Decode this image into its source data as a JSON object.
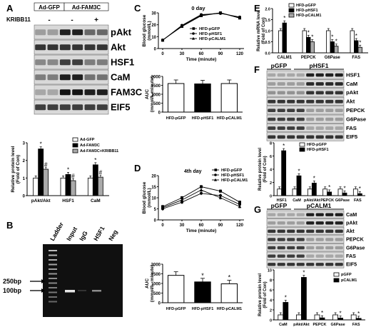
{
  "panels": {
    "A": {
      "letter": "A",
      "groups": [
        "Ad-GFP",
        "Ad-FAM3C"
      ],
      "kribb_label": "KRIBB11",
      "kribb_signs": [
        "-",
        "-",
        "+"
      ],
      "blot_labels": [
        "pAkt",
        "Akt",
        "HSF1",
        "CaM",
        "FAM3C",
        "EIF5"
      ],
      "blot_intensity": [
        [
          0.35,
          0.95,
          0.6
        ],
        [
          0.85,
          0.85,
          0.85
        ],
        [
          0.45,
          0.8,
          0.5
        ],
        [
          0.5,
          0.95,
          0.55
        ],
        [
          0.3,
          1.0,
          0.95
        ],
        [
          0.8,
          0.8,
          0.8
        ]
      ]
    },
    "B": {
      "letter": "B",
      "lanes": [
        "Ladder",
        "Input",
        "IgG",
        "HSF1",
        "Neg"
      ],
      "markers": [
        "250bp",
        "100bp"
      ]
    },
    "C": {
      "letter": "C",
      "day_label": "0 day"
    },
    "D": {
      "letter": "D",
      "day_label": "4th day"
    },
    "E": {
      "letter": "E"
    },
    "F": {
      "letter": "F",
      "groups": [
        "pGFP",
        "pHSF1"
      ],
      "blot_labels": [
        "HSF1",
        "CaM",
        "pAkt",
        "Akt",
        "PEPCK",
        "G6Pase",
        "FAS",
        "EIF5"
      ],
      "blot_intensity": [
        [
          0.3,
          0.95
        ],
        [
          0.35,
          0.9
        ],
        [
          0.4,
          0.85
        ],
        [
          0.85,
          0.85
        ],
        [
          0.8,
          0.35
        ],
        [
          0.8,
          0.35
        ],
        [
          0.8,
          0.3
        ],
        [
          0.85,
          0.85
        ]
      ]
    },
    "G": {
      "letter": "G",
      "groups": [
        "pGFP",
        "pCALM1"
      ],
      "blot_labels": [
        "CaM",
        "pAkt",
        "Akt",
        "PEPCK",
        "G6Pase",
        "FAS",
        "EIF5"
      ],
      "blot_intensity": [
        [
          0.3,
          0.95
        ],
        [
          0.35,
          0.95
        ],
        [
          0.85,
          0.85
        ],
        [
          0.8,
          0.35
        ],
        [
          0.8,
          0.35
        ],
        [
          0.8,
          0.3
        ],
        [
          0.85,
          0.85
        ]
      ]
    }
  },
  "chart_data": [
    {
      "id": "A-bar",
      "type": "bar",
      "categories": [
        "pAkt/Akt",
        "HSF1",
        "CaM"
      ],
      "series": [
        {
          "name": "Ad-GFP",
          "values": [
            1.0,
            1.0,
            1.0
          ],
          "color": "#ffffff"
        },
        {
          "name": "Ad-FAM3C",
          "values": [
            2.65,
            1.2,
            1.75
          ],
          "color": "#000000"
        },
        {
          "name": "Ad-FAM3C+KRIBB11",
          "values": [
            1.5,
            0.85,
            1.05
          ],
          "color": "#aaaaaa"
        }
      ],
      "ylabel": "Relative protein level",
      "ylim": [
        0,
        3
      ],
      "yticks": [
        "0",
        "1",
        "2",
        "3"
      ],
      "annotations": [
        "*",
        "#",
        "*",
        "#",
        "*",
        "#"
      ]
    },
    {
      "id": "C-line",
      "type": "line",
      "x": [
        0,
        30,
        60,
        90,
        120
      ],
      "series": [
        {
          "name": "HFD-pGFP",
          "values": [
            7.0,
            19.0,
            28.0,
            30.0,
            26.0
          ]
        },
        {
          "name": "HFD-pHSF1",
          "values": [
            7.0,
            19.5,
            28.5,
            29.5,
            26.5
          ]
        },
        {
          "name": "HFD-pCALM1",
          "values": [
            7.2,
            18.5,
            27.5,
            30.0,
            25.5
          ]
        }
      ],
      "xlabel": "Time (minute)",
      "ylabel": "Blood glucose (mmol/L)",
      "ylim": [
        0,
        30
      ],
      "yticks": [
        "0",
        "10",
        "20",
        "30"
      ],
      "xticks": [
        "0",
        "30",
        "60",
        "90",
        "120"
      ]
    },
    {
      "id": "C-bar",
      "type": "bar",
      "categories": [
        "HFD-pGFP",
        "HFD-pHSF1",
        "HFD-pCALM1"
      ],
      "values": [
        1600,
        1580,
        1600
      ],
      "colors": [
        "#ffffff",
        "#000000",
        "#ffffff"
      ],
      "ylabel": "AUC (mmol/L.minute)",
      "ylim": [
        0,
        2000
      ],
      "yticks": [
        "0",
        "500",
        "1000",
        "1500",
        "2000"
      ]
    },
    {
      "id": "D-line",
      "type": "line",
      "x": [
        0,
        30,
        60,
        90,
        120
      ],
      "series": [
        {
          "name": "HFD-pGFP",
          "values": [
            6.0,
            10.0,
            15.0,
            13.0,
            8.0
          ]
        },
        {
          "name": "HFD-pHSF1",
          "values": [
            5.0,
            8.0,
            12.0,
            11.0,
            7.0
          ]
        },
        {
          "name": "HFD-pCALM1",
          "values": [
            5.5,
            9.0,
            13.5,
            10.0,
            6.0
          ]
        }
      ],
      "xlabel": "Time (minute)",
      "ylabel": "Blood glucose (mmol/L)",
      "ylim": [
        0,
        20
      ],
      "yticks": [
        "0",
        "5",
        "10",
        "15",
        "20"
      ],
      "xticks": [
        "0",
        "30",
        "60",
        "90",
        "120"
      ]
    },
    {
      "id": "D-bar",
      "type": "bar",
      "categories": [
        "HFD-pGFP",
        "HFD-pHSF1",
        "HFD-pCALM1"
      ],
      "values": [
        1420,
        1080,
        980
      ],
      "colors": [
        "#ffffff",
        "#000000",
        "#ffffff"
      ],
      "ylabel": "AUC (mmol/L_minute)",
      "ylim": [
        0,
        2000
      ],
      "yticks": [
        "0",
        "500",
        "1000",
        "1500",
        "2000"
      ],
      "annotations": [
        "",
        "*",
        "*"
      ]
    },
    {
      "id": "E-bar",
      "type": "bar",
      "categories": [
        "CALM1",
        "PEPCK",
        "G6Pase",
        "FAS"
      ],
      "series": [
        {
          "name": "HFD-pGFP",
          "values": [
            1.0,
            1.0,
            1.0,
            1.0
          ],
          "color": "#ffffff"
        },
        {
          "name": "HFD-pHSF1",
          "values": [
            1.35,
            0.7,
            0.5,
            0.55
          ],
          "color": "#000000"
        },
        {
          "name": "HFD-pCALM1",
          "values": [
            0,
            0.5,
            0.3,
            0.25
          ],
          "color": "#aaaaaa"
        }
      ],
      "ylabel": "Relative mRNA level (Fold of Con)",
      "ylim": [
        0,
        2.0
      ],
      "yticks": [
        "0.0",
        "0.5",
        "1.0",
        "1.5",
        "2.0"
      ],
      "annotations": [
        "*",
        "*",
        "*",
        "*",
        "*",
        "*",
        "*"
      ]
    },
    {
      "id": "F-bar",
      "type": "bar",
      "categories": [
        "HSF1",
        "CaM",
        "pAkt/Akt",
        "PEPCK",
        "G6Pase",
        "FAS"
      ],
      "series": [
        {
          "name": "HFD-pGFP",
          "values": [
            1,
            1,
            1,
            1,
            1,
            1
          ],
          "color": "#ffffff"
        },
        {
          "name": "HFD-pHSF1",
          "values": [
            6.8,
            3.0,
            1.9,
            0.55,
            0.4,
            0.3
          ],
          "color": "#000000"
        }
      ],
      "ylabel": "Relative protein level (Fold of Con)",
      "ylim": [
        0,
        8
      ],
      "yticks": [
        "0",
        "2",
        "4",
        "6",
        "8"
      ],
      "annotations": [
        "*",
        "*",
        "*",
        "*",
        "*",
        "*"
      ]
    },
    {
      "id": "G-bar",
      "type": "bar",
      "categories": [
        "CaM",
        "pAkt/Akt",
        "PEPCK",
        "G6Pase",
        "FAS"
      ],
      "series": [
        {
          "name": "pGFP",
          "values": [
            1,
            1,
            1,
            1,
            1
          ],
          "color": "#ffffff"
        },
        {
          "name": "pCALM1",
          "values": [
            3.5,
            8.5,
            0.4,
            0.35,
            0.3
          ],
          "color": "#000000"
        }
      ],
      "ylabel": "Relative protein level (Fold of Con)",
      "ylim": [
        0,
        10
      ],
      "yticks": [
        "0",
        "2",
        "4",
        "6",
        "8",
        "10"
      ],
      "annotations": [
        "*",
        "*",
        "*",
        "*",
        "*"
      ]
    }
  ]
}
